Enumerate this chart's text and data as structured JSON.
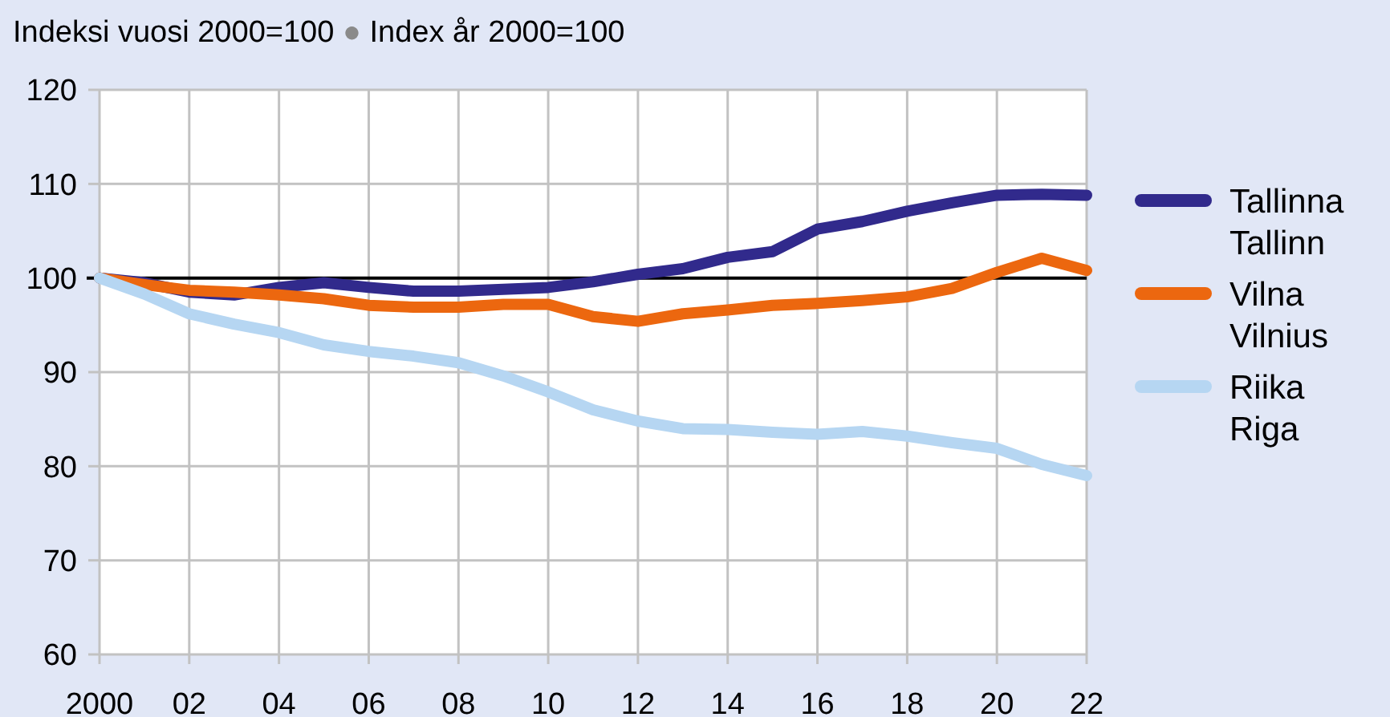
{
  "chart_data": {
    "type": "line",
    "title": "Indeksi vuosi 2000=100 ● Index år 2000=100",
    "x": [
      2000,
      2001,
      2002,
      2003,
      2004,
      2005,
      2006,
      2007,
      2008,
      2009,
      2010,
      2011,
      2012,
      2013,
      2014,
      2015,
      2016,
      2017,
      2018,
      2019,
      2020,
      2021,
      2022
    ],
    "series": [
      {
        "name": "Tallinna\nTallinn",
        "color": "#312a8c",
        "values": [
          100,
          99.5,
          98.5,
          98.2,
          99,
          99.5,
          99,
          98.6,
          98.6,
          98.8,
          99,
          99.6,
          100.4,
          101,
          102.2,
          102.8,
          105.2,
          106,
          107.1,
          108,
          108.8,
          108.9,
          108.8
        ]
      },
      {
        "name": "Vilna\nVilnius",
        "color": "#ec670f",
        "values": [
          100,
          99.3,
          98.7,
          98.5,
          98.2,
          97.8,
          97.1,
          96.9,
          96.9,
          97.2,
          97.2,
          95.9,
          95.4,
          96.2,
          96.6,
          97.1,
          97.3,
          97.6,
          98,
          98.9,
          100.6,
          102.1,
          100.8
        ]
      },
      {
        "name": "Riika\nRiga",
        "color": "#b6d6f2",
        "values": [
          100,
          98.3,
          96.2,
          95.1,
          94.2,
          92.9,
          92.2,
          91.7,
          91,
          89.6,
          87.9,
          86,
          84.8,
          84,
          83.9,
          83.6,
          83.4,
          83.7,
          83.2,
          82.5,
          81.9,
          80.2,
          79
        ]
      }
    ],
    "xlim": [
      2000,
      2022
    ],
    "xticks": [
      2000,
      {
        "value": 2002,
        "label": "02"
      },
      {
        "value": 2004,
        "label": "04"
      },
      {
        "value": 2006,
        "label": "06"
      },
      {
        "value": 2008,
        "label": "08"
      },
      {
        "value": 2010,
        "label": "10"
      },
      {
        "value": 2012,
        "label": "12"
      },
      {
        "value": 2014,
        "label": "14"
      },
      {
        "value": 2016,
        "label": "16"
      },
      {
        "value": 2018,
        "label": "18"
      },
      {
        "value": 2020,
        "label": "20"
      },
      {
        "value": 2022,
        "label": "22"
      }
    ],
    "ylim": [
      60,
      120
    ],
    "yticks": [
      60,
      70,
      80,
      90,
      100,
      110,
      120
    ],
    "ref_lines": [
      {
        "axis": "y",
        "value": 100,
        "label": null,
        "color": "#000000"
      }
    ],
    "grid": true,
    "legend": "right",
    "marker": "none",
    "line_style": "solid"
  }
}
